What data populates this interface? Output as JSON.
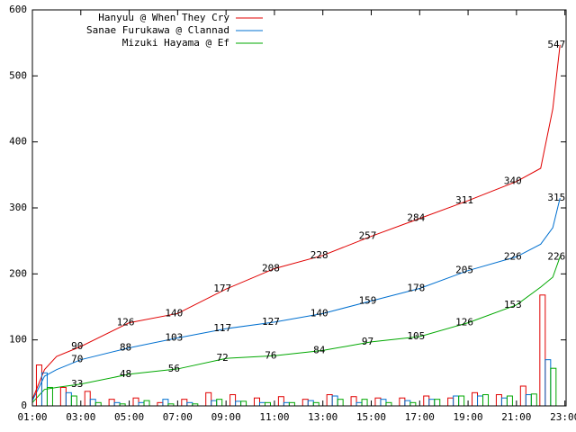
{
  "chart_data": [
    {
      "type": "line",
      "x": [
        1,
        1.5,
        2,
        3,
        5,
        7,
        9,
        11,
        13,
        15,
        17,
        19,
        21,
        22,
        22.5,
        22.8
      ],
      "xlim": [
        1,
        23.05
      ],
      "xticks": [
        {
          "value": 1,
          "label": "01:00"
        },
        {
          "value": 3,
          "label": "03:00"
        },
        {
          "value": 5,
          "label": "05:00"
        },
        {
          "value": 7,
          "label": "07:00"
        },
        {
          "value": 9,
          "label": "09:00"
        },
        {
          "value": 11,
          "label": "11:00"
        },
        {
          "value": 13,
          "label": "13:00"
        },
        {
          "value": 15,
          "label": "15:00"
        },
        {
          "value": 17,
          "label": "17:00"
        },
        {
          "value": 19,
          "label": "19:00"
        },
        {
          "value": 21,
          "label": "21:00"
        },
        {
          "value": 23,
          "label": "23:00"
        }
      ],
      "ylim": [
        0,
        600
      ],
      "yticks": [
        0,
        100,
        200,
        300,
        400,
        500,
        600
      ],
      "legend": "top-left",
      "series": [
        {
          "name": "Hanyuu @ When They Cry",
          "color": "#e00000",
          "values": [
            10,
            55,
            75,
            90,
            126,
            140,
            177,
            208,
            228,
            257,
            284,
            311,
            340,
            360,
            450,
            547
          ],
          "value_labels": [
            null,
            null,
            null,
            "90",
            "126",
            "140",
            "177",
            "208",
            "228",
            "257",
            "284",
            "311",
            "340",
            null,
            null,
            "547"
          ]
        },
        {
          "name": "Sanae Furukawa @ Clannad",
          "color": "#0070d0",
          "values": [
            8,
            45,
            55,
            70,
            88,
            103,
            117,
            127,
            140,
            159,
            178,
            205,
            226,
            245,
            270,
            315
          ],
          "value_labels": [
            null,
            null,
            null,
            "70",
            "88",
            "103",
            "117",
            "127",
            "140",
            "159",
            "178",
            "205",
            "226",
            null,
            null,
            "315"
          ]
        },
        {
          "name": "Mizuki Hayama @ Ef",
          "color": "#00a800",
          "values": [
            5,
            25,
            28,
            33,
            48,
            56,
            72,
            76,
            84,
            97,
            105,
            126,
            153,
            180,
            195,
            226
          ],
          "value_labels": [
            null,
            null,
            null,
            "33",
            "48",
            "56",
            "72",
            "76",
            "84",
            "97",
            "105",
            "126",
            "153",
            null,
            null,
            "226"
          ]
        }
      ]
    },
    {
      "type": "bar",
      "x": [
        1.5,
        2.5,
        3.5,
        4.5,
        5.5,
        6.5,
        7.5,
        8.5,
        9.5,
        10.5,
        11.5,
        12.5,
        13.5,
        14.5,
        15.5,
        16.5,
        17.5,
        18.5,
        19.5,
        20.5,
        21.5,
        22.3
      ],
      "xlim": [
        1,
        23.05
      ],
      "ylim": [
        0,
        600
      ],
      "series": [
        {
          "color": "#e00000",
          "values": [
            62,
            28,
            22,
            10,
            12,
            5,
            10,
            20,
            17,
            12,
            14,
            10,
            17,
            14,
            12,
            12,
            15,
            12,
            20,
            17,
            30,
            168
          ]
        },
        {
          "color": "#0070d0",
          "values": [
            50,
            20,
            10,
            5,
            5,
            10,
            5,
            8,
            7,
            5,
            5,
            8,
            15,
            5,
            10,
            8,
            10,
            15,
            15,
            12,
            17,
            70
          ]
        },
        {
          "color": "#00a800",
          "values": [
            28,
            15,
            5,
            3,
            8,
            3,
            3,
            10,
            7,
            5,
            5,
            5,
            10,
            10,
            5,
            5,
            10,
            15,
            17,
            15,
            18,
            57
          ]
        }
      ]
    }
  ]
}
